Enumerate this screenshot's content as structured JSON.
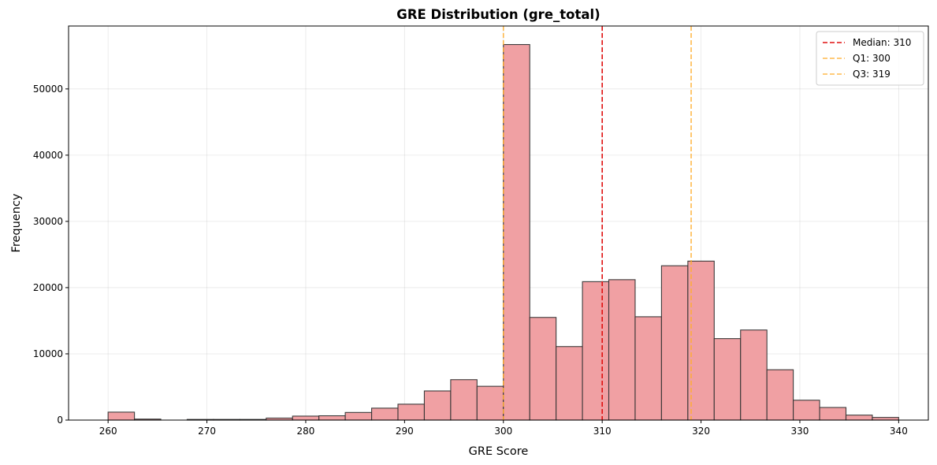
{
  "chart_data": {
    "type": "bar",
    "title": "GRE Distribution (gre_total)",
    "xlabel": "GRE Score",
    "ylabel": "Frequency",
    "xlim": [
      256,
      343
    ],
    "ylim": [
      0,
      59500
    ],
    "x_ticks": [
      260,
      270,
      280,
      290,
      300,
      310,
      320,
      330,
      340
    ],
    "y_ticks": [
      0,
      10000,
      20000,
      30000,
      40000,
      50000
    ],
    "grid": true,
    "bar_color": "#f0a0a3",
    "bar_edge_color": "#333333",
    "bin_edges": [
      260,
      262.667,
      265.333,
      268,
      270.667,
      273.333,
      276,
      278.667,
      281.333,
      284,
      286.667,
      289.333,
      292,
      294.667,
      297.333,
      300,
      302.667,
      305.333,
      308,
      310.667,
      313.333,
      316,
      318.667,
      321.333,
      324,
      326.667,
      329.333,
      332,
      334.667,
      337.333,
      340
    ],
    "counts": [
      1200,
      150,
      0,
      100,
      100,
      100,
      300,
      600,
      650,
      1150,
      1800,
      2400,
      4400,
      6100,
      5100,
      56700,
      15500,
      11100,
      20900,
      21200,
      15600,
      23300,
      24000,
      12300,
      13600,
      7600,
      3000,
      1900,
      750,
      400
    ],
    "reference_lines": [
      {
        "label": "Median: 310",
        "x": 310,
        "color": "#e01010",
        "alpha": 1.0
      },
      {
        "label": "Q1: 300",
        "x": 300,
        "color": "#ffae2e",
        "alpha": 0.85
      },
      {
        "label": "Q3: 319",
        "x": 319,
        "color": "#ffae2e",
        "alpha": 0.85
      }
    ],
    "legend_position": "top-right"
  }
}
